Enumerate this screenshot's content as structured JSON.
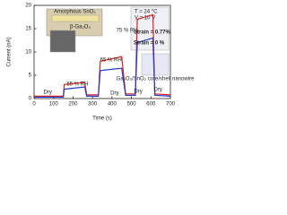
{
  "chart_data": {
    "type": "line",
    "x_label": "Time (s)",
    "y_label": "Current (nA)",
    "x": [
      0,
      150,
      155,
      260,
      270,
      330,
      340,
      450,
      470,
      520,
      530,
      610,
      620,
      700
    ],
    "series": [
      {
        "name": "Strain = 0.77%",
        "color": "#e0201b",
        "values": [
          0.5,
          0.5,
          3,
          3.5,
          0.8,
          0.8,
          8,
          9,
          1,
          1,
          17,
          18,
          1,
          0.8
        ]
      },
      {
        "name": "Strain = 0 %",
        "color": "#1c3fd0",
        "values": [
          0.3,
          0.3,
          2,
          2.5,
          0.5,
          0.5,
          6,
          6.5,
          0.7,
          0.7,
          12,
          13,
          0.7,
          0.5
        ]
      }
    ],
    "xlim": [
      0,
      700
    ],
    "xticks": [
      0,
      100,
      200,
      300,
      400,
      500,
      600,
      700
    ],
    "ylim": [
      0,
      20
    ],
    "yticks": [
      0,
      5,
      10,
      15,
      20
    ],
    "conditions": [
      "T = 24 °C",
      "V = 10 V"
    ],
    "humidity_labels": [
      "Dry",
      "55 % RH",
      "Dry",
      "65 % RH",
      "Dry",
      "75 % RH",
      "Dry"
    ],
    "inset_labels": [
      "Amorphous SnO₂",
      "β-Ga₂O₃",
      "Ga₂O₃/SnO₂ core/shell nanowire"
    ]
  }
}
